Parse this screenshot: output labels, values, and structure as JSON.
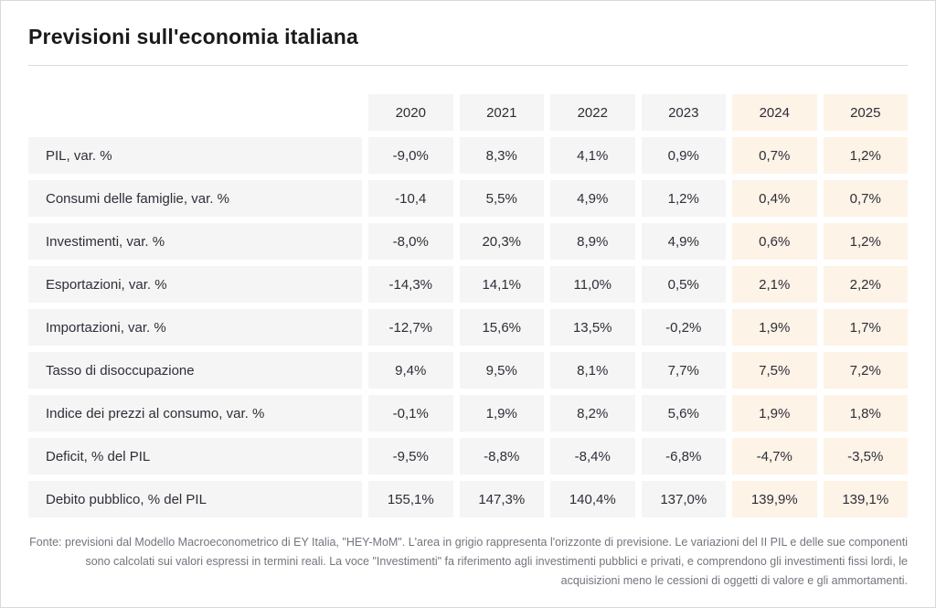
{
  "page": {
    "title": "Previsioni sull'economia italiana"
  },
  "table": {
    "columns": [
      "2020",
      "2021",
      "2022",
      "2023",
      "2024",
      "2025"
    ],
    "forecast_columns": [
      "2024",
      "2025"
    ],
    "rows": [
      {
        "label": "PIL, var. %",
        "values": [
          "-9,0%",
          "8,3%",
          "4,1%",
          "0,9%",
          "0,7%",
          "1,2%"
        ]
      },
      {
        "label": "Consumi delle famiglie, var. %",
        "values": [
          "-10,4",
          "5,5%",
          "4,9%",
          "1,2%",
          "0,4%",
          "0,7%"
        ]
      },
      {
        "label": "Investimenti, var. %",
        "values": [
          "-8,0%",
          "20,3%",
          "8,9%",
          "4,9%",
          "0,6%",
          "1,2%"
        ]
      },
      {
        "label": "Esportazioni, var. %",
        "values": [
          "-14,3%",
          "14,1%",
          "11,0%",
          "0,5%",
          "2,1%",
          "2,2%"
        ]
      },
      {
        "label": "Importazioni, var. %",
        "values": [
          "-12,7%",
          "15,6%",
          "13,5%",
          "-0,2%",
          "1,9%",
          "1,7%"
        ]
      },
      {
        "label": "Tasso di disoccupazione",
        "values": [
          "9,4%",
          "9,5%",
          "8,1%",
          "7,7%",
          "7,5%",
          "7,2%"
        ]
      },
      {
        "label": "Indice dei prezzi al consumo, var. %",
        "values": [
          "-0,1%",
          "1,9%",
          "8,2%",
          "5,6%",
          "1,9%",
          "1,8%"
        ]
      },
      {
        "label": "Deficit, % del PIL",
        "values": [
          "-9,5%",
          "-8,8%",
          "-8,4%",
          "-6,8%",
          "-4,7%",
          "-3,5%"
        ]
      },
      {
        "label": "Debito pubblico, % del PIL",
        "values": [
          "155,1%",
          "147,3%",
          "140,4%",
          "137,0%",
          "139,9%",
          "139,1%"
        ]
      }
    ]
  },
  "footnote": "Fonte: previsioni dal Modello Macroeconometrico di EY Italia, \"HEY-MoM\". L'area in grigio rappresenta l'orizzonte di previsione. Le variazioni del II PIL e delle sue componenti sono calcolati sui valori espressi in termini reali. La voce \"Investimenti\" fa riferimento agli investimenti pubblici e privati, e comprendono gli investimenti fissi lordi, le acquisizioni meno le cessioni di oggetti di valore e gli ammortamenti.",
  "colors": {
    "cell_bg": "#f5f5f5",
    "forecast_bg": "#fdf3e7",
    "text": "#2e2e38",
    "footnote_text": "#74747e",
    "divider": "#dcdcdc",
    "page_border": "#d9d9d9"
  },
  "chart_data": {
    "type": "table",
    "title": "Previsioni sull'economia italiana",
    "categories": [
      "2020",
      "2021",
      "2022",
      "2023",
      "2024",
      "2025"
    ],
    "forecast_horizon": [
      "2024",
      "2025"
    ],
    "series": [
      {
        "name": "PIL, var. %",
        "values": [
          -9.0,
          8.3,
          4.1,
          0.9,
          0.7,
          1.2
        ]
      },
      {
        "name": "Consumi delle famiglie, var. %",
        "values": [
          -10.4,
          5.5,
          4.9,
          1.2,
          0.4,
          0.7
        ]
      },
      {
        "name": "Investimenti, var. %",
        "values": [
          -8.0,
          20.3,
          8.9,
          4.9,
          0.6,
          1.2
        ]
      },
      {
        "name": "Esportazioni, var. %",
        "values": [
          -14.3,
          14.1,
          11.0,
          0.5,
          2.1,
          2.2
        ]
      },
      {
        "name": "Importazioni, var. %",
        "values": [
          -12.7,
          15.6,
          13.5,
          -0.2,
          1.9,
          1.7
        ]
      },
      {
        "name": "Tasso di disoccupazione",
        "values": [
          9.4,
          9.5,
          8.1,
          7.7,
          7.5,
          7.2
        ]
      },
      {
        "name": "Indice dei prezzi al consumo, var. %",
        "values": [
          -0.1,
          1.9,
          8.2,
          5.6,
          1.9,
          1.8
        ]
      },
      {
        "name": "Deficit, % del PIL",
        "values": [
          -9.5,
          -8.8,
          -8.4,
          -6.8,
          -4.7,
          -3.5
        ]
      },
      {
        "name": "Debito pubblico, % del PIL",
        "values": [
          155.1,
          147.3,
          140.4,
          137.0,
          139.9,
          139.1
        ]
      }
    ]
  }
}
